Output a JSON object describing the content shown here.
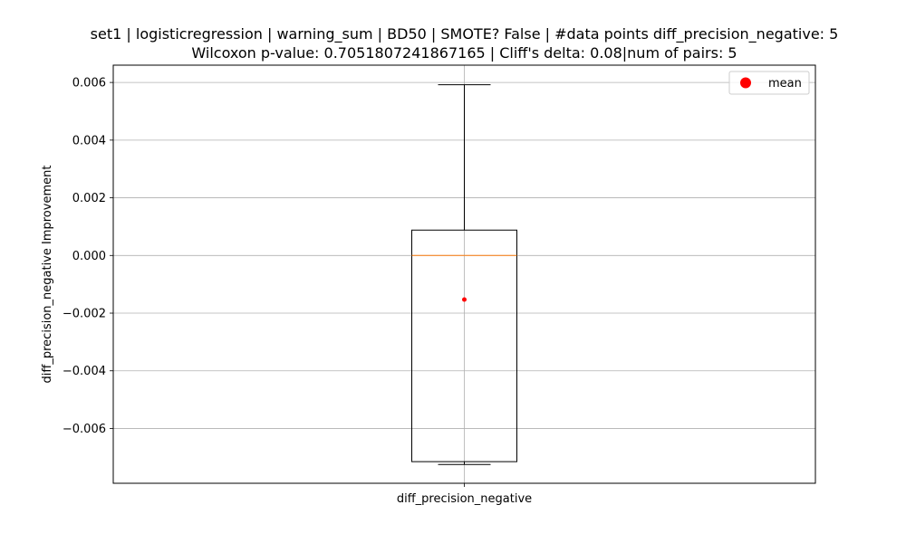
{
  "chart_data": {
    "type": "box",
    "title_lines": [
      "set1 | logisticregression | warning_sum | BD50 | SMOTE? False | #data points diff_precision_negative: 5",
      "Wilcoxon p-value: 0.7051807241867165 | Cliff's delta: 0.08|num of pairs: 5"
    ],
    "xlabel": "",
    "ylabel": "diff_precision_negative Improvement",
    "categories": [
      "diff_precision_negative"
    ],
    "ylim": [
      -0.0079,
      0.0066
    ],
    "yticks": [
      -0.006,
      -0.004,
      -0.002,
      0.0,
      0.002,
      0.004,
      0.006
    ],
    "ytick_labels": [
      "−0.006",
      "−0.004",
      "−0.002",
      "0.000",
      "0.002",
      "0.004",
      "0.006"
    ],
    "grid": true,
    "legend": {
      "placement": "top-right",
      "entries": [
        {
          "label": "mean",
          "color": "#ff0000"
        }
      ]
    },
    "box": {
      "whisker_low": -0.00725,
      "q1": -0.00715,
      "median": 0.0,
      "q3": 0.00088,
      "whisker_high": 0.00592,
      "mean": -0.00153
    },
    "colors": {
      "box": "#000000",
      "median": "#ff7f0e",
      "mean": "#ff0000",
      "grid": "#b0b0b0"
    }
  }
}
